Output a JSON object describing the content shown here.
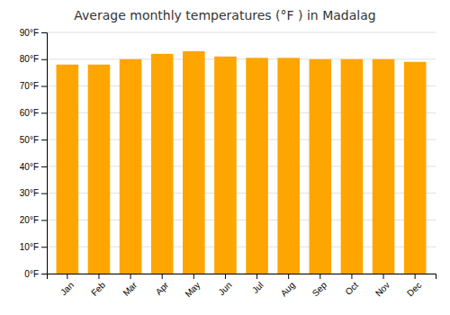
{
  "chart_data": {
    "type": "bar",
    "title": "Average monthly temperatures (°F ) in Madalag",
    "categories": [
      "Jan",
      "Feb",
      "Mar",
      "Apr",
      "May",
      "Jun",
      "Jul",
      "Aug",
      "Sep",
      "Oct",
      "Nov",
      "Dec"
    ],
    "values": [
      78,
      78,
      80,
      82,
      83,
      81,
      80.5,
      80.5,
      80,
      80,
      80,
      79
    ],
    "color": "#FFA500",
    "ylim": [
      0,
      90
    ],
    "yticks": [
      {
        "value": 0,
        "label": "0°F"
      },
      {
        "value": 10,
        "label": "10°F"
      },
      {
        "value": 20,
        "label": "20°F"
      },
      {
        "value": 30,
        "label": "30°F"
      },
      {
        "value": 40,
        "label": "40°F"
      },
      {
        "value": 50,
        "label": "50°F"
      },
      {
        "value": 60,
        "label": "60°F"
      },
      {
        "value": 70,
        "label": "70°F"
      },
      {
        "value": 80,
        "label": "80°F"
      },
      {
        "value": 90,
        "label": "90°F"
      }
    ],
    "grid": true
  }
}
